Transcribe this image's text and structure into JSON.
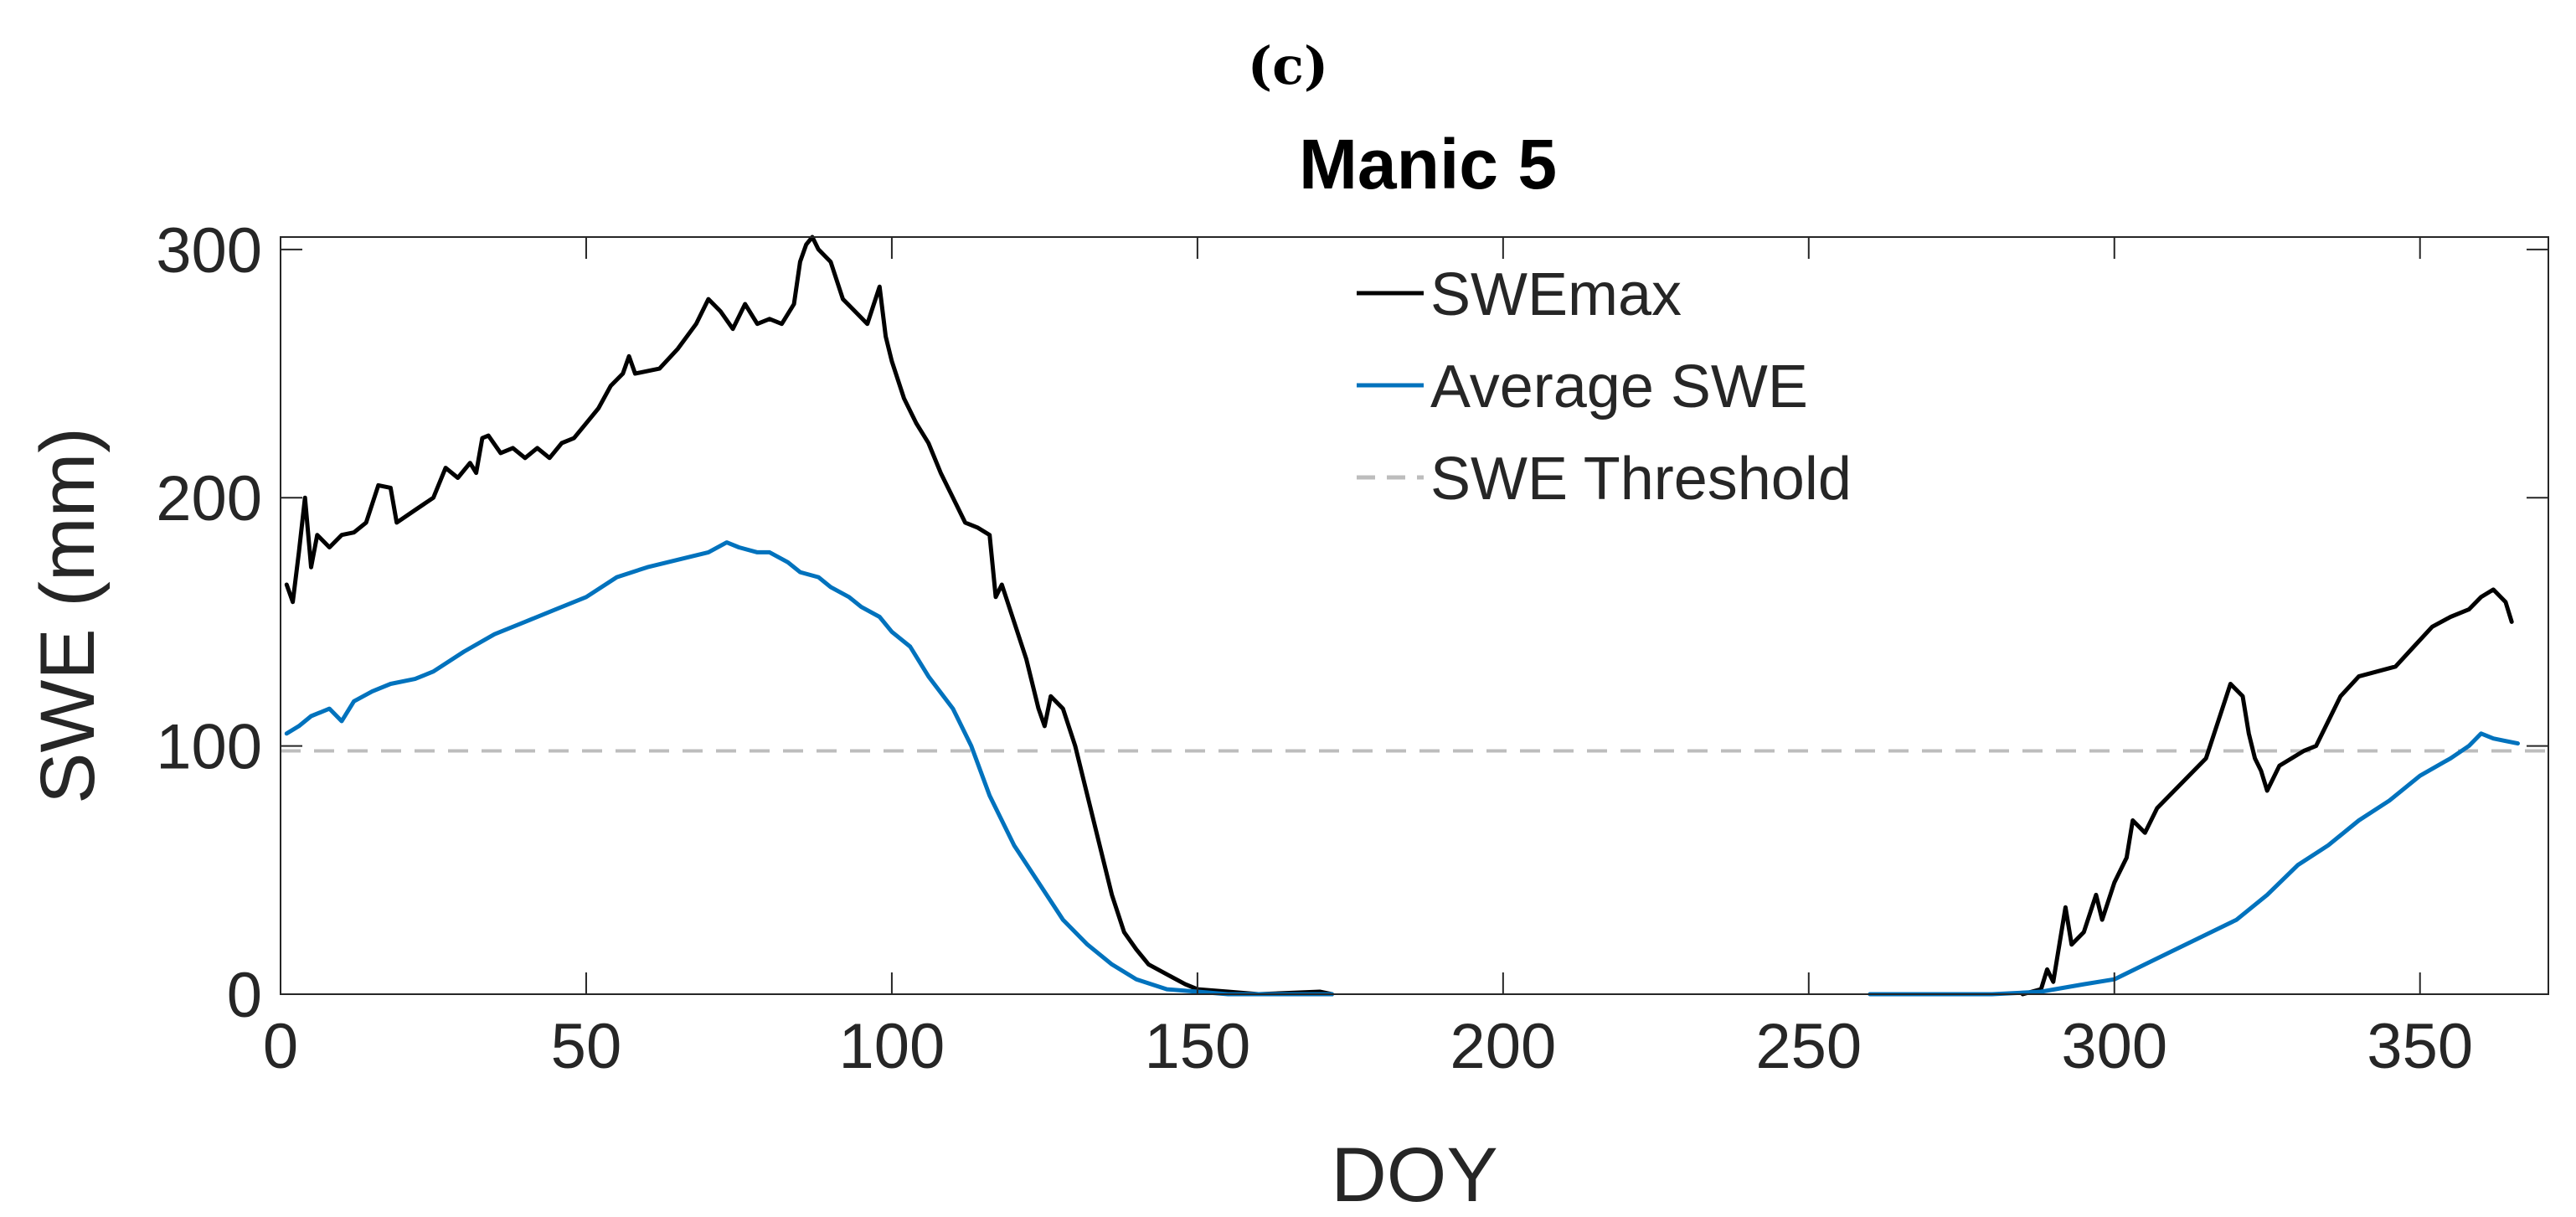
{
  "panel_label": "(c)",
  "colors": {
    "swe_max": "#000000",
    "average_swe": "#0072bd",
    "threshold": "#bdbdbd",
    "axis": "#262626"
  },
  "chart_data": {
    "type": "line",
    "title": "Manic 5",
    "xlabel": "DOY",
    "ylabel": "SWE (mm)",
    "xlim": [
      0,
      371
    ],
    "ylim": [
      0,
      305
    ],
    "xticks": [
      0,
      50,
      100,
      150,
      200,
      250,
      300,
      350
    ],
    "yticks": [
      0,
      100,
      200,
      300
    ],
    "legend_position": "top-center",
    "series": [
      {
        "name": "SWEmax",
        "style": "solid",
        "color": "#000000",
        "points": [
          [
            1,
            165
          ],
          [
            2,
            158
          ],
          [
            3,
            178
          ],
          [
            4,
            200
          ],
          [
            5,
            172
          ],
          [
            6,
            185
          ],
          [
            8,
            180
          ],
          [
            10,
            185
          ],
          [
            12,
            186
          ],
          [
            14,
            190
          ],
          [
            16,
            205
          ],
          [
            18,
            204
          ],
          [
            19,
            190
          ],
          [
            22,
            195
          ],
          [
            25,
            200
          ],
          [
            27,
            212
          ],
          [
            29,
            208
          ],
          [
            31,
            214
          ],
          [
            32,
            210
          ],
          [
            33,
            224
          ],
          [
            34,
            225
          ],
          [
            36,
            218
          ],
          [
            38,
            220
          ],
          [
            40,
            216
          ],
          [
            42,
            220
          ],
          [
            44,
            216
          ],
          [
            46,
            222
          ],
          [
            48,
            224
          ],
          [
            50,
            230
          ],
          [
            52,
            236
          ],
          [
            54,
            245
          ],
          [
            56,
            250
          ],
          [
            57,
            257
          ],
          [
            58,
            250
          ],
          [
            62,
            252
          ],
          [
            65,
            260
          ],
          [
            68,
            270
          ],
          [
            70,
            280
          ],
          [
            72,
            275
          ],
          [
            74,
            268
          ],
          [
            76,
            278
          ],
          [
            78,
            270
          ],
          [
            80,
            272
          ],
          [
            82,
            270
          ],
          [
            84,
            278
          ],
          [
            85,
            295
          ],
          [
            86,
            302
          ],
          [
            87,
            305
          ],
          [
            88,
            300
          ],
          [
            90,
            295
          ],
          [
            92,
            280
          ],
          [
            94,
            275
          ],
          [
            96,
            270
          ],
          [
            98,
            285
          ],
          [
            99,
            265
          ],
          [
            100,
            255
          ],
          [
            102,
            240
          ],
          [
            104,
            230
          ],
          [
            106,
            222
          ],
          [
            108,
            210
          ],
          [
            110,
            200
          ],
          [
            112,
            190
          ],
          [
            114,
            188
          ],
          [
            116,
            185
          ],
          [
            117,
            160
          ],
          [
            118,
            165
          ],
          [
            120,
            150
          ],
          [
            122,
            135
          ],
          [
            124,
            115
          ],
          [
            125,
            108
          ],
          [
            126,
            120
          ],
          [
            128,
            115
          ],
          [
            130,
            100
          ],
          [
            132,
            80
          ],
          [
            134,
            60
          ],
          [
            136,
            40
          ],
          [
            138,
            25
          ],
          [
            140,
            18
          ],
          [
            142,
            12
          ],
          [
            145,
            8
          ],
          [
            148,
            4
          ],
          [
            150,
            2
          ],
          [
            155,
            1
          ],
          [
            160,
            0
          ],
          [
            170,
            1
          ],
          [
            172,
            0
          ],
          null,
          [
            285,
            0
          ],
          [
            288,
            2
          ],
          [
            289,
            10
          ],
          [
            290,
            5
          ],
          [
            291,
            20
          ],
          [
            292,
            35
          ],
          [
            293,
            20
          ],
          [
            295,
            25
          ],
          [
            297,
            40
          ],
          [
            298,
            30
          ],
          [
            300,
            45
          ],
          [
            302,
            55
          ],
          [
            303,
            70
          ],
          [
            305,
            65
          ],
          [
            307,
            75
          ],
          [
            309,
            80
          ],
          [
            311,
            85
          ],
          [
            313,
            90
          ],
          [
            315,
            95
          ],
          [
            317,
            110
          ],
          [
            319,
            125
          ],
          [
            321,
            120
          ],
          [
            322,
            105
          ],
          [
            323,
            95
          ],
          [
            324,
            90
          ],
          [
            325,
            82
          ],
          [
            327,
            92
          ],
          [
            329,
            95
          ],
          [
            331,
            98
          ],
          [
            333,
            100
          ],
          [
            335,
            110
          ],
          [
            337,
            120
          ],
          [
            340,
            128
          ],
          [
            343,
            130
          ],
          [
            346,
            132
          ],
          [
            349,
            140
          ],
          [
            352,
            148
          ],
          [
            355,
            152
          ],
          [
            358,
            155
          ],
          [
            360,
            160
          ],
          [
            362,
            163
          ],
          [
            364,
            158
          ],
          [
            365,
            150
          ]
        ]
      },
      {
        "name": "Average SWE",
        "style": "solid",
        "color": "#0072bd",
        "points": [
          [
            1,
            105
          ],
          [
            3,
            108
          ],
          [
            5,
            112
          ],
          [
            8,
            115
          ],
          [
            10,
            110
          ],
          [
            12,
            118
          ],
          [
            15,
            122
          ],
          [
            18,
            125
          ],
          [
            22,
            127
          ],
          [
            25,
            130
          ],
          [
            30,
            138
          ],
          [
            35,
            145
          ],
          [
            40,
            150
          ],
          [
            45,
            155
          ],
          [
            50,
            160
          ],
          [
            55,
            168
          ],
          [
            60,
            172
          ],
          [
            65,
            175
          ],
          [
            70,
            178
          ],
          [
            73,
            182
          ],
          [
            75,
            180
          ],
          [
            78,
            178
          ],
          [
            80,
            178
          ],
          [
            83,
            174
          ],
          [
            85,
            170
          ],
          [
            88,
            168
          ],
          [
            90,
            164
          ],
          [
            93,
            160
          ],
          [
            95,
            156
          ],
          [
            98,
            152
          ],
          [
            100,
            146
          ],
          [
            103,
            140
          ],
          [
            106,
            128
          ],
          [
            110,
            115
          ],
          [
            113,
            100
          ],
          [
            116,
            80
          ],
          [
            120,
            60
          ],
          [
            124,
            45
          ],
          [
            128,
            30
          ],
          [
            132,
            20
          ],
          [
            136,
            12
          ],
          [
            140,
            6
          ],
          [
            145,
            2
          ],
          [
            150,
            1
          ],
          [
            155,
            0
          ],
          [
            172,
            0
          ],
          null,
          [
            260,
            0
          ],
          [
            270,
            0
          ],
          [
            280,
            0
          ],
          [
            288,
            1
          ],
          [
            295,
            4
          ],
          [
            300,
            6
          ],
          [
            305,
            12
          ],
          [
            310,
            18
          ],
          [
            315,
            24
          ],
          [
            320,
            30
          ],
          [
            325,
            40
          ],
          [
            330,
            52
          ],
          [
            335,
            60
          ],
          [
            340,
            70
          ],
          [
            345,
            78
          ],
          [
            350,
            88
          ],
          [
            355,
            95
          ],
          [
            358,
            100
          ],
          [
            360,
            105
          ],
          [
            362,
            103
          ],
          [
            364,
            102
          ],
          [
            366,
            101
          ]
        ]
      },
      {
        "name": "SWE Threshold",
        "style": "dashed",
        "color": "#bdbdbd",
        "points": [
          [
            0,
            98
          ],
          [
            371,
            98
          ]
        ]
      }
    ]
  }
}
